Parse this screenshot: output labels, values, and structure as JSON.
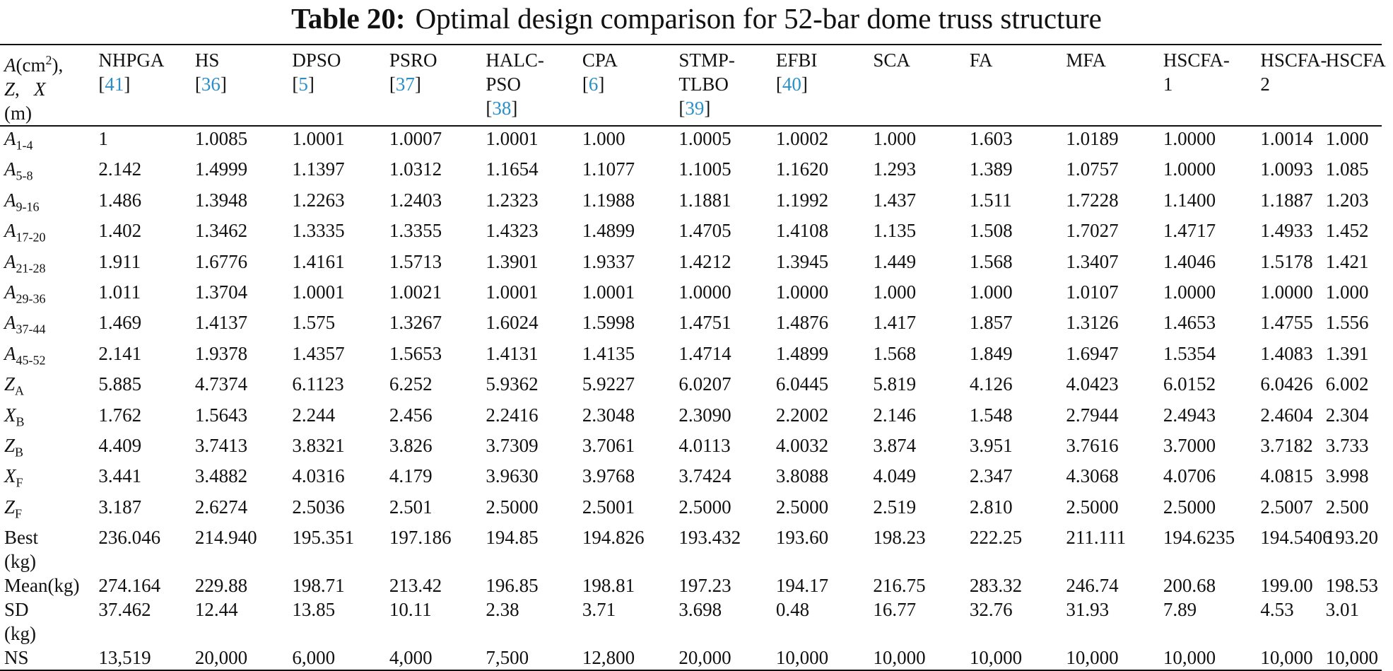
{
  "caption": {
    "label": "Table 20:",
    "text": "Optimal design comparison for 52-bar dome truss structure"
  },
  "header": {
    "first": {
      "line1": "A(cm²),",
      "line2": "Z,   X",
      "line3": "(m)"
    },
    "columns": [
      {
        "name": "NHPGA",
        "ref": "41"
      },
      {
        "name": "HS",
        "ref": "36"
      },
      {
        "name": "DPSO",
        "ref": "5"
      },
      {
        "name": "PSRO",
        "ref": "37"
      },
      {
        "name": "HALC-PSO",
        "line1": "HALC-",
        "line2": "PSO",
        "ref": "38"
      },
      {
        "name": "CPA",
        "ref": "6"
      },
      {
        "name": "STMP-TLBO",
        "line1": "STMP-",
        "line2": "TLBO",
        "ref": "39"
      },
      {
        "name": "EFBI",
        "ref": "40"
      },
      {
        "name": "SCA",
        "ref": ""
      },
      {
        "name": "FA",
        "ref": ""
      },
      {
        "name": "MFA",
        "ref": ""
      },
      {
        "name": "HSCFA-1",
        "line1": "HSCFA-",
        "line2": "1"
      },
      {
        "name": "HSCFA-2",
        "line1": "HSCFA-",
        "line2": "2"
      },
      {
        "name": "HSCFA",
        "ref": ""
      }
    ]
  },
  "rows": [
    {
      "label": "A",
      "sub": "1-4",
      "italic": true,
      "values": [
        "1",
        "1.0085",
        "1.0001",
        "1.0007",
        "1.0001",
        "1.000",
        "1.0005",
        "1.0002",
        "1.000",
        "1.603",
        "1.0189",
        "1.0000",
        "1.0014",
        "1.000"
      ]
    },
    {
      "label": "A",
      "sub": "5-8",
      "italic": true,
      "values": [
        "2.142",
        "1.4999",
        "1.1397",
        "1.0312",
        "1.1654",
        "1.1077",
        "1.1005",
        "1.1620",
        "1.293",
        "1.389",
        "1.0757",
        "1.0000",
        "1.0093",
        "1.085"
      ]
    },
    {
      "label": "A",
      "sub": "9-16",
      "italic": true,
      "values": [
        "1.486",
        "1.3948",
        "1.2263",
        "1.2403",
        "1.2323",
        "1.1988",
        "1.1881",
        "1.1992",
        "1.437",
        "1.511",
        "1.7228",
        "1.1400",
        "1.1887",
        "1.203"
      ]
    },
    {
      "label": "A",
      "sub": "17-20",
      "italic": true,
      "values": [
        "1.402",
        "1.3462",
        "1.3335",
        "1.3355",
        "1.4323",
        "1.4899",
        "1.4705",
        "1.4108",
        "1.135",
        "1.508",
        "1.7027",
        "1.4717",
        "1.4933",
        "1.452"
      ]
    },
    {
      "label": "A",
      "sub": "21-28",
      "italic": true,
      "values": [
        "1.911",
        "1.6776",
        "1.4161",
        "1.5713",
        "1.3901",
        "1.9337",
        "1.4212",
        "1.3945",
        "1.449",
        "1.568",
        "1.3407",
        "1.4046",
        "1.5178",
        "1.421"
      ]
    },
    {
      "label": "A",
      "sub": "29-36",
      "italic": true,
      "values": [
        "1.011",
        "1.3704",
        "1.0001",
        "1.0021",
        "1.0001",
        "1.0001",
        "1.0000",
        "1.0000",
        "1.000",
        "1.000",
        "1.0107",
        "1.0000",
        "1.0000",
        "1.000"
      ]
    },
    {
      "label": "A",
      "sub": "37-44",
      "italic": true,
      "values": [
        "1.469",
        "1.4137",
        "1.575",
        "1.3267",
        "1.6024",
        "1.5998",
        "1.4751",
        "1.4876",
        "1.417",
        "1.857",
        "1.3126",
        "1.4653",
        "1.4755",
        "1.556"
      ]
    },
    {
      "label": "A",
      "sub": "45-52",
      "italic": true,
      "values": [
        "2.141",
        "1.9378",
        "1.4357",
        "1.5653",
        "1.4131",
        "1.4135",
        "1.4714",
        "1.4899",
        "1.568",
        "1.849",
        "1.6947",
        "1.5354",
        "1.4083",
        "1.391"
      ]
    },
    {
      "label": "Z",
      "sub": "A",
      "italic": true,
      "values": [
        "5.885",
        "4.7374",
        "6.1123",
        "6.252",
        "5.9362",
        "5.9227",
        "6.0207",
        "6.0445",
        "5.819",
        "4.126",
        "4.0423",
        "6.0152",
        "6.0426",
        "6.002"
      ]
    },
    {
      "label": "X",
      "sub": "B",
      "italic": true,
      "values": [
        "1.762",
        "1.5643",
        "2.244",
        "2.456",
        "2.2416",
        "2.3048",
        "2.3090",
        "2.2002",
        "2.146",
        "1.548",
        "2.7944",
        "2.4943",
        "2.4604",
        "2.304"
      ]
    },
    {
      "label": "Z",
      "sub": "B",
      "italic": true,
      "values": [
        "4.409",
        "3.7413",
        "3.8321",
        "3.826",
        "3.7309",
        "3.7061",
        "4.0113",
        "4.0032",
        "3.874",
        "3.951",
        "3.7616",
        "3.7000",
        "3.7182",
        "3.733"
      ]
    },
    {
      "label": "X",
      "sub": "F",
      "italic": true,
      "values": [
        "3.441",
        "3.4882",
        "4.0316",
        "4.179",
        "3.9630",
        "3.9768",
        "3.7424",
        "3.8088",
        "4.049",
        "2.347",
        "4.3068",
        "4.0706",
        "4.0815",
        "3.998"
      ]
    },
    {
      "label": "Z",
      "sub": "F",
      "italic": true,
      "values": [
        "3.187",
        "2.6274",
        "2.5036",
        "2.501",
        "2.5000",
        "2.5001",
        "2.5000",
        "2.5000",
        "2.519",
        "2.810",
        "2.5000",
        "2.5000",
        "2.5007",
        "2.500"
      ]
    },
    {
      "label": "Best (kg)",
      "line1": "Best",
      "line2": "(kg)",
      "italic": false,
      "values": [
        "236.046",
        "214.940",
        "195.351",
        "197.186",
        "194.85",
        "194.826",
        "193.432",
        "193.60",
        "198.23",
        "222.25",
        "211.111",
        "194.6235",
        "194.5406",
        "193.20"
      ]
    },
    {
      "label": "Mean(kg)",
      "italic": false,
      "values": [
        "274.164",
        "229.88",
        "198.71",
        "213.42",
        "196.85",
        "198.81",
        "197.23",
        "194.17",
        "216.75",
        "283.32",
        "246.74",
        "200.68",
        "199.00",
        "198.53"
      ]
    },
    {
      "label": "SD (kg)",
      "line1": "SD",
      "line2": "(kg)",
      "italic": false,
      "values": [
        "37.462",
        "12.44",
        "13.85",
        "10.11",
        "2.38",
        "3.71",
        "3.698",
        "0.48",
        "16.77",
        "32.76",
        "31.93",
        "7.89",
        "4.53",
        "3.01"
      ]
    },
    {
      "label": "NS",
      "italic": false,
      "values": [
        "13,519",
        "20,000",
        "6,000",
        "4,000",
        "7,500",
        "12,800",
        "20,000",
        "10,000",
        "10,000",
        "10,000",
        "10,000",
        "10,000",
        "10,000",
        "10,000"
      ]
    }
  ]
}
